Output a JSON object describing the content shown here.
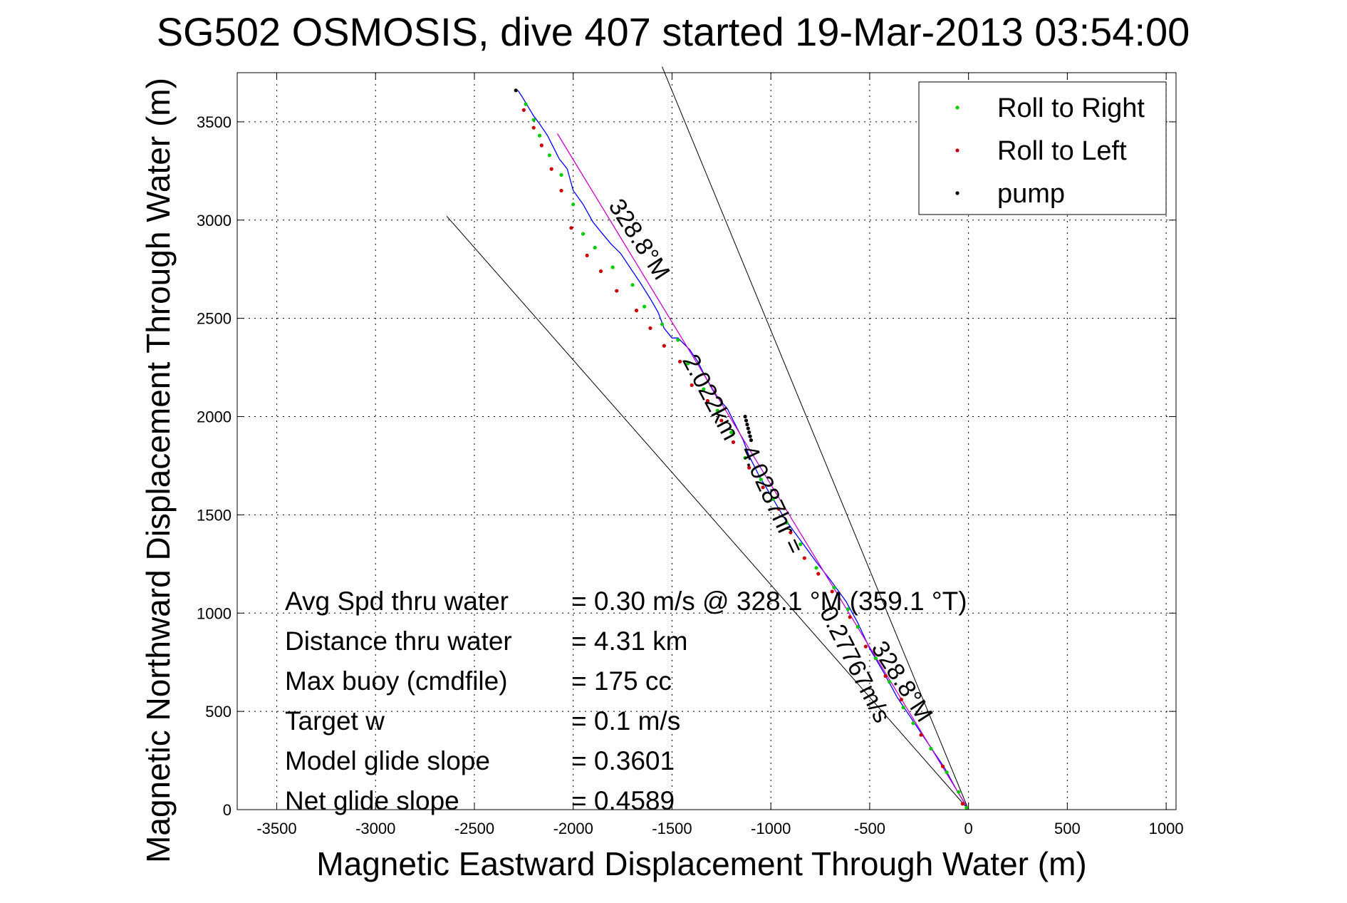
{
  "chart_data": {
    "type": "line",
    "title": "SG502 OSMOSIS, dive 407 started 19-Mar-2013 03:54:00",
    "xlabel": "Magnetic Eastward Displacement Through Water (m)",
    "ylabel": "Magnetic Northward Displacement Through Water (m)",
    "xlim": [
      -3700,
      1050
    ],
    "ylim": [
      0,
      3750
    ],
    "xticks": [
      -3500,
      -3000,
      -2500,
      -2000,
      -1500,
      -1000,
      -500,
      0,
      500,
      1000
    ],
    "yticks": [
      0,
      500,
      1000,
      1500,
      2000,
      2500,
      3000,
      3500
    ],
    "grid": true,
    "legend": {
      "placement": "top-right",
      "entries": [
        {
          "label": "Roll to Right",
          "color": "#00cc00"
        },
        {
          "label": "Roll to Left",
          "color": "#cc0000"
        },
        {
          "label": "pump",
          "color": "#000000"
        }
      ]
    },
    "series": [
      {
        "style": "track",
        "color": "#0000ff",
        "x": [
          0,
          -60,
          -120,
          -200,
          -280,
          -360,
          -430,
          -500,
          -560,
          -620,
          -700,
          -770,
          -850,
          -930,
          -1000,
          -1060,
          -1110,
          -1140,
          -1180,
          -1220,
          -1280,
          -1330,
          -1370,
          -1410,
          -1470,
          -1500,
          -1540,
          -1570,
          -1610,
          -1660,
          -1700,
          -1760,
          -1810,
          -1860,
          -1900,
          -1950,
          -2000,
          -2030,
          -2070,
          -2100,
          -2130,
          -2170,
          -2200,
          -2230,
          -2260,
          -2280
        ],
        "y": [
          0,
          100,
          210,
          330,
          450,
          570,
          700,
          820,
          950,
          1060,
          1170,
          1260,
          1370,
          1480,
          1600,
          1700,
          1800,
          1880,
          1960,
          2040,
          2110,
          2200,
          2280,
          2340,
          2400,
          2400,
          2450,
          2530,
          2600,
          2680,
          2740,
          2830,
          2880,
          2940,
          2990,
          3080,
          3150,
          3260,
          3310,
          3370,
          3430,
          3490,
          3530,
          3580,
          3630,
          3660
        ]
      },
      {
        "style": "fit",
        "color": "#cc00cc",
        "x": [
          0,
          -2080
        ],
        "y": [
          0,
          3440
        ]
      }
    ],
    "marker_series": [
      {
        "name": "Roll to Right",
        "color": "#00cc00",
        "x": [
          -10,
          -50,
          -110,
          -190,
          -280,
          -330,
          -400,
          -470,
          -560,
          -610,
          -680,
          -770,
          -850,
          -920,
          -990,
          -1050,
          -1130,
          -1200,
          -1270,
          -1340,
          -1420,
          -1470,
          -1550,
          -1640,
          -1700,
          -1800,
          -1890,
          -1950,
          -2000,
          -2060,
          -2120,
          -2170,
          -2200,
          -2240
        ],
        "y": [
          10,
          90,
          190,
          310,
          440,
          520,
          650,
          770,
          930,
          1020,
          1130,
          1230,
          1350,
          1460,
          1580,
          1680,
          1790,
          1920,
          2030,
          2140,
          2270,
          2390,
          2470,
          2560,
          2670,
          2760,
          2860,
          2930,
          3080,
          3230,
          3330,
          3430,
          3510,
          3590
        ]
      },
      {
        "name": "Roll to Left",
        "color": "#cc0000",
        "x": [
          -30,
          -130,
          -240,
          -340,
          -420,
          -520,
          -600,
          -690,
          -760,
          -830,
          -900,
          -960,
          -1040,
          -1110,
          -1190,
          -1250,
          -1320,
          -1400,
          -1460,
          -1540,
          -1610,
          -1680,
          -1780,
          -1860,
          -1930,
          -2010,
          -2060,
          -2110,
          -2160,
          -2200,
          -2250
        ],
        "y": [
          30,
          220,
          380,
          560,
          680,
          830,
          980,
          1110,
          1200,
          1280,
          1410,
          1530,
          1640,
          1740,
          1870,
          1980,
          2080,
          2160,
          2280,
          2360,
          2450,
          2540,
          2640,
          2740,
          2820,
          2960,
          3150,
          3260,
          3380,
          3470,
          3560
        ]
      },
      {
        "name": "pump",
        "color": "#000000",
        "x": [
          -1100,
          -1105,
          -1110,
          -1115,
          -1120,
          -1125,
          -1130,
          -2290
        ],
        "y": [
          1880,
          1900,
          1920,
          1940,
          1960,
          1980,
          2000,
          3660
        ]
      }
    ],
    "reference_lines": [
      {
        "x": [
          0,
          -2640
        ],
        "y": [
          0,
          3020
        ]
      },
      {
        "x": [
          0,
          -1550
        ],
        "y": [
          0,
          3780
        ]
      }
    ],
    "annotations": [
      {
        "text": "328.8°M",
        "x": -1700,
        "y": 2880,
        "rotation": 57
      },
      {
        "text": "2.022km",
        "x": -1340,
        "y": 2080,
        "rotation": 62
      },
      {
        "text": "4.0287hr =",
        "x": -1030,
        "y": 1560,
        "rotation": 65
      },
      {
        "text": "0.27767m/s",
        "x": -610,
        "y": 720,
        "rotation": 63
      },
      {
        "text": "328.8°M",
        "x": -370,
        "y": 630,
        "rotation": 57
      }
    ],
    "stats": [
      {
        "label": "Avg Spd thru water",
        "value": "=  0.30 m/s @ 328.1 °M (359.1 °T)"
      },
      {
        "label": "Distance thru water",
        "value": "=  4.31 km"
      },
      {
        "label": "Max buoy (cmdfile)",
        "value": "= 175 cc"
      },
      {
        "label": "Target w",
        "value": "= 0.1 m/s"
      },
      {
        "label": "Model glide slope",
        "value": "= 0.3601"
      },
      {
        "label": "Net glide slope",
        "value": "= 0.4589"
      }
    ]
  }
}
